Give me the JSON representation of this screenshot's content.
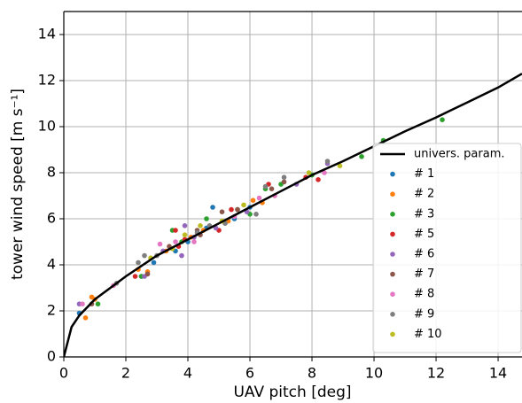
{
  "chart_data": {
    "type": "scatter",
    "xlabel": "UAV pitch [deg]",
    "ylabel": "tower wind speed [m s⁻¹]",
    "xlim": [
      0,
      14.77
    ],
    "ylim": [
      0,
      15
    ],
    "xticks": [
      0,
      2,
      4,
      6,
      8,
      10,
      12,
      14
    ],
    "yticks": [
      0,
      2,
      4,
      6,
      8,
      10,
      12,
      14
    ],
    "grid": true,
    "legend": "lower right",
    "series": [
      {
        "name": "univers. param.",
        "style": "line",
        "color": "#000000",
        "x": [
          0,
          0.25,
          0.5,
          1,
          2,
          3,
          4,
          5,
          6,
          7,
          8,
          9,
          10,
          11,
          12,
          13,
          14,
          14.77
        ],
        "values": [
          0,
          1.3,
          1.8,
          2.5,
          3.5,
          4.4,
          5.1,
          5.8,
          6.5,
          7.2,
          7.9,
          8.5,
          9.15,
          9.8,
          10.4,
          11.05,
          11.7,
          12.3
        ]
      },
      {
        "name": "# 1",
        "style": "points",
        "color": "#1f77b4",
        "x": [
          0.5,
          2.9,
          3.6,
          4.0,
          4.6,
          4.8,
          5.5,
          6.0,
          2.5
        ],
        "values": [
          1.9,
          4.1,
          4.6,
          5.0,
          5.6,
          6.5,
          6.0,
          6.5,
          3.5
        ]
      },
      {
        "name": "# 2",
        "style": "points",
        "color": "#ff7f0e",
        "x": [
          0.7,
          0.9,
          1.0,
          2.4,
          2.7,
          3.3,
          4.5,
          5.3,
          6.1,
          6.4,
          4.1
        ],
        "values": [
          1.7,
          2.6,
          2.5,
          3.8,
          3.7,
          4.6,
          5.5,
          5.9,
          6.8,
          6.7,
          5.2
        ]
      },
      {
        "name": "# 3",
        "style": "points",
        "color": "#2ca02c",
        "x": [
          1.1,
          2.5,
          3.5,
          4.6,
          5.6,
          6.0,
          6.5,
          7.0,
          9.6,
          10.3,
          12.2,
          8.0,
          3.8
        ],
        "values": [
          2.3,
          3.5,
          5.5,
          6.0,
          6.4,
          6.2,
          7.3,
          7.5,
          8.7,
          9.4,
          10.3,
          7.9,
          5.0
        ]
      },
      {
        "name": "# 5",
        "style": "points",
        "color": "#d62728",
        "x": [
          2.3,
          3.7,
          3.9,
          5.0,
          5.4,
          6.6,
          7.8,
          8.2,
          3.6
        ],
        "values": [
          3.5,
          4.8,
          5.1,
          5.5,
          6.4,
          7.5,
          7.8,
          7.7,
          5.5
        ]
      },
      {
        "name": "# 6",
        "style": "points",
        "color": "#9467bd",
        "x": [
          0.5,
          2.6,
          3.2,
          3.8,
          4.2,
          4.9,
          5.9,
          7.5,
          3.9,
          8.5
        ],
        "values": [
          2.3,
          3.5,
          4.6,
          4.4,
          5.2,
          5.6,
          6.3,
          7.5,
          5.7,
          8.4
        ]
      },
      {
        "name": "# 7",
        "style": "points",
        "color": "#8c564b",
        "x": [
          0.9,
          2.7,
          3.4,
          4.4,
          5.1,
          5.6,
          6.7,
          7.1,
          4.3
        ],
        "values": [
          2.3,
          3.6,
          4.8,
          5.3,
          6.3,
          6.4,
          7.3,
          7.6,
          5.5
        ]
      },
      {
        "name": "# 8",
        "style": "points",
        "color": "#e377c2",
        "x": [
          0.6,
          1.6,
          3.1,
          4.2,
          5.5,
          6.3,
          6.8,
          8.4,
          3.6
        ],
        "values": [
          2.3,
          3.1,
          4.9,
          5.0,
          6.1,
          6.9,
          7.0,
          8.0,
          5.0
        ]
      },
      {
        "name": "# 9",
        "style": "points",
        "color": "#7f7f7f",
        "x": [
          1.7,
          2.4,
          2.6,
          3.0,
          4.3,
          5.2,
          6.2,
          6.5,
          7.1,
          8.5,
          4.7
        ],
        "values": [
          3.2,
          4.1,
          4.4,
          4.4,
          5.4,
          5.8,
          6.2,
          7.4,
          7.8,
          8.5,
          5.7
        ]
      },
      {
        "name": "# 10",
        "style": "points",
        "color": "#bcbd22",
        "x": [
          2.8,
          3.5,
          4.4,
          5.1,
          5.8,
          7.9,
          8.9,
          3.9
        ],
        "values": [
          4.3,
          4.7,
          5.7,
          5.9,
          6.6,
          8.0,
          8.3,
          5.3
        ]
      }
    ]
  }
}
